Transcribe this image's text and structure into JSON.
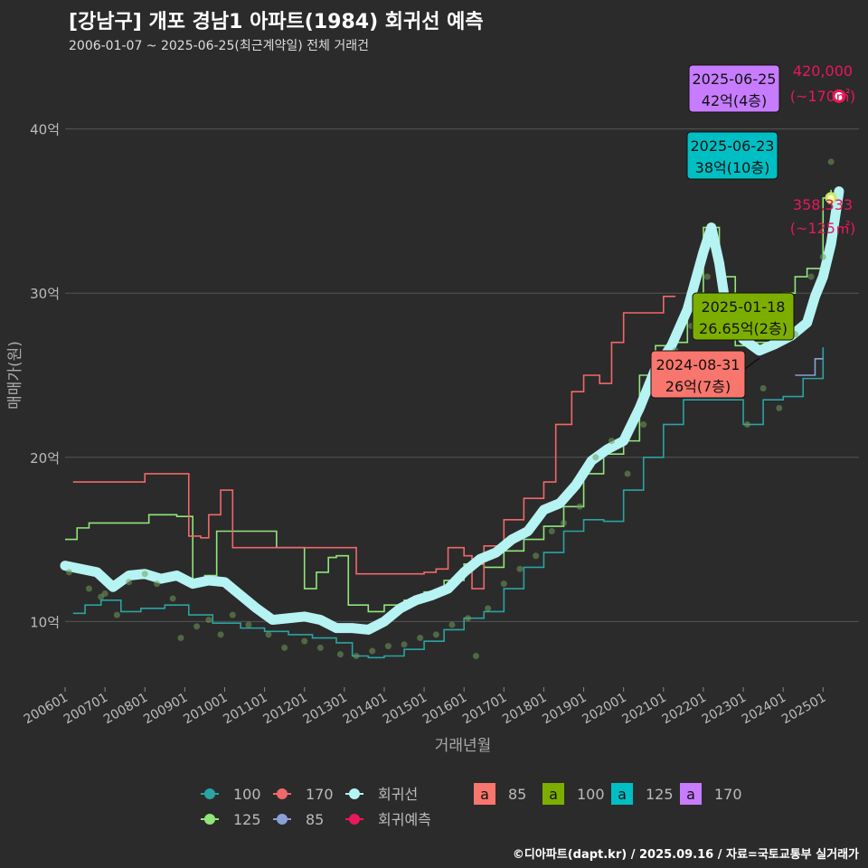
{
  "header": {
    "title": "[강남구] 개포 경남1 아파트(1984) 회귀선 예측",
    "subtitle": "2006-01-07 ~ 2025-06-25(최근계약일) 전체 거래건"
  },
  "footer": {
    "credit": "©디아파트(dapt.kr) / 2025.09.16 / 자료=국토교통부 실거래가"
  },
  "colors": {
    "background": "#2b2b2b",
    "grid": "#555555",
    "s100": "#2aa3a3",
    "s125": "#90e67a",
    "s170": "#f0686a",
    "s85": "#8aa0d8",
    "regression": "#b6f3f3",
    "prediction": "#e8185a",
    "box85": "#f8766d",
    "box100": "#7cae00",
    "box125": "#00bfc4",
    "box170": "#c77cff"
  },
  "chart_data": {
    "type": "line",
    "xlabel": "거래년월",
    "ylabel": "매매가(원)",
    "ylim": [
      6,
      44
    ],
    "yticks": [
      10,
      20,
      30,
      40
    ],
    "ytick_labels": [
      "10억",
      "20억",
      "30억",
      "40억"
    ],
    "xticks": [
      "200601",
      "200701",
      "200801",
      "200901",
      "201001",
      "201101",
      "201201",
      "201301",
      "201401",
      "201501",
      "201601",
      "201701",
      "201801",
      "201901",
      "202001",
      "202101",
      "202201",
      "202301",
      "202401",
      "202501"
    ],
    "xrange": [
      2006.0,
      2025.9
    ],
    "series": [
      {
        "name": "100",
        "x": [
          2006.2,
          2006.5,
          2006.9,
          2007.4,
          2007.9,
          2008.5,
          2009.1,
          2009.7,
          2010.4,
          2011.0,
          2011.6,
          2012.2,
          2012.8,
          2013.2,
          2013.6,
          2014.0,
          2014.5,
          2015.0,
          2015.5,
          2016.0,
          2016.5,
          2017.0,
          2017.5,
          2018.0,
          2018.5,
          2019.0,
          2019.5,
          2020.0,
          2020.5,
          2021.0,
          2021.5,
          2022.0,
          2023.0,
          2023.5,
          2024.0,
          2024.5,
          2025.0
        ],
        "values": [
          10.5,
          11.0,
          11.3,
          10.6,
          10.8,
          11.0,
          10.4,
          9.9,
          9.6,
          9.4,
          9.2,
          9.0,
          8.7,
          7.9,
          7.8,
          7.9,
          8.3,
          8.8,
          9.5,
          10.2,
          10.6,
          12.0,
          13.3,
          14.2,
          15.5,
          16.2,
          16.1,
          18.0,
          20.0,
          22.0,
          23.5,
          23.5,
          22.0,
          23.5,
          23.7,
          24.8,
          26.7
        ]
      },
      {
        "name": "125",
        "x": [
          2006.0,
          2006.3,
          2006.6,
          2008.1,
          2008.8,
          2009.2,
          2009.5,
          2009.8,
          2011.3,
          2011.7,
          2012.0,
          2012.3,
          2012.6,
          2012.8,
          2013.1,
          2013.6,
          2014.0,
          2014.5,
          2015.0,
          2015.5,
          2016.0,
          2016.5,
          2017.0,
          2017.5,
          2018.0,
          2018.5,
          2019.0,
          2019.5,
          2020.0,
          2020.4,
          2020.8,
          2021.2,
          2021.6,
          2022.0,
          2022.4,
          2022.8,
          2023.3,
          2023.7,
          2024.0,
          2024.3,
          2024.6,
          2025.0,
          2025.2
        ],
        "values": [
          15.0,
          15.7,
          16.0,
          16.5,
          16.4,
          12.2,
          12.8,
          15.5,
          14.5,
          14.5,
          12.0,
          13.0,
          13.9,
          14.0,
          11.0,
          10.6,
          11.0,
          11.3,
          11.8,
          12.5,
          13.5,
          13.3,
          14.3,
          15.0,
          15.8,
          17.0,
          19.0,
          20.2,
          21.0,
          25.0,
          26.8,
          27.0,
          30.0,
          34.0,
          31.0,
          26.8,
          27.0,
          28.5,
          30.0,
          31.0,
          31.5,
          35.8,
          36.3
        ]
      },
      {
        "name": "170",
        "x": [
          2006.2,
          2006.5,
          2008.0,
          2008.4,
          2009.1,
          2009.4,
          2009.6,
          2009.9,
          2010.2,
          2010.5,
          2010.8,
          2013.3,
          2013.7,
          2015.0,
          2015.3,
          2015.6,
          2016.0,
          2016.2,
          2016.5,
          2017.0,
          2017.5,
          2018.0,
          2018.3,
          2018.7,
          2019.0,
          2019.4,
          2019.7,
          2020.0,
          2020.3,
          2021.0,
          2021.3
        ],
        "values": [
          18.5,
          18.5,
          19.0,
          19.0,
          15.2,
          15.1,
          16.5,
          18.0,
          14.5,
          14.5,
          14.5,
          12.9,
          12.9,
          13.0,
          13.2,
          14.5,
          14.0,
          12.0,
          14.6,
          16.2,
          17.5,
          18.5,
          22.0,
          24.0,
          25.0,
          24.5,
          27.0,
          28.8,
          28.8,
          29.8,
          29.8
        ],
        "segments": true
      },
      {
        "name": "85",
        "x": [
          2024.3,
          2024.6,
          2024.8,
          2025.0
        ],
        "values": [
          25.0,
          25.0,
          26.0,
          26.0
        ]
      },
      {
        "name": "회귀선",
        "x": [
          2006.0,
          2006.4,
          2006.8,
          2007.2,
          2007.6,
          2008.0,
          2008.4,
          2008.8,
          2009.2,
          2009.6,
          2010.0,
          2010.4,
          2010.8,
          2011.2,
          2011.6,
          2012.0,
          2012.4,
          2012.8,
          2013.2,
          2013.6,
          2014.0,
          2014.4,
          2014.8,
          2015.2,
          2015.6,
          2016.0,
          2016.4,
          2016.8,
          2017.2,
          2017.6,
          2018.0,
          2018.4,
          2018.8,
          2019.2,
          2019.6,
          2020.0,
          2020.4,
          2020.8,
          2021.2,
          2021.6,
          2022.0,
          2022.2,
          2022.4,
          2022.6,
          2022.8,
          2023.0,
          2023.4,
          2023.8,
          2024.2,
          2024.6,
          2024.8,
          2025.0,
          2025.2,
          2025.4
        ],
        "values": [
          13.4,
          13.2,
          13.0,
          12.1,
          12.8,
          12.9,
          12.6,
          12.8,
          12.3,
          12.5,
          12.4,
          11.6,
          10.8,
          10.1,
          10.2,
          10.3,
          10.1,
          9.6,
          9.6,
          9.5,
          10.0,
          10.8,
          11.3,
          11.6,
          12.0,
          13.0,
          13.8,
          14.2,
          15.0,
          15.5,
          16.8,
          17.2,
          18.3,
          19.8,
          20.5,
          21.0,
          23.0,
          25.4,
          26.8,
          29.0,
          32.5,
          34.0,
          31.8,
          28.6,
          27.8,
          27.2,
          26.5,
          26.9,
          27.4,
          28.2,
          29.8,
          31.0,
          33.0,
          36.2
        ]
      },
      {
        "name": "회귀예측",
        "x": [
          2025.2,
          2025.4
        ],
        "values": [
          35.8,
          42.0
        ]
      }
    ],
    "scatter_points": [
      [
        2006.1,
        13.0
      ],
      [
        2006.6,
        12.0
      ],
      [
        2006.9,
        11.5
      ],
      [
        2007.0,
        11.7
      ],
      [
        2007.3,
        10.4
      ],
      [
        2007.6,
        12.4
      ],
      [
        2008.0,
        12.9
      ],
      [
        2008.3,
        12.3
      ],
      [
        2008.7,
        11.4
      ],
      [
        2008.9,
        9.0
      ],
      [
        2009.3,
        9.7
      ],
      [
        2009.6,
        10.1
      ],
      [
        2009.9,
        9.2
      ],
      [
        2010.2,
        10.4
      ],
      [
        2010.6,
        9.8
      ],
      [
        2011.1,
        9.2
      ],
      [
        2011.5,
        8.4
      ],
      [
        2012.0,
        8.8
      ],
      [
        2012.4,
        8.4
      ],
      [
        2012.9,
        8.0
      ],
      [
        2013.3,
        7.9
      ],
      [
        2013.7,
        8.2
      ],
      [
        2014.1,
        8.5
      ],
      [
        2014.5,
        8.6
      ],
      [
        2014.9,
        9.0
      ],
      [
        2015.3,
        9.2
      ],
      [
        2015.7,
        9.8
      ],
      [
        2016.1,
        10.2
      ],
      [
        2016.3,
        7.9
      ],
      [
        2016.6,
        10.8
      ],
      [
        2017.0,
        12.3
      ],
      [
        2017.4,
        13.2
      ],
      [
        2017.8,
        14.0
      ],
      [
        2018.2,
        15.5
      ],
      [
        2018.5,
        16.0
      ],
      [
        2018.9,
        17.0
      ],
      [
        2019.3,
        20.0
      ],
      [
        2019.7,
        21.0
      ],
      [
        2020.1,
        19.0
      ],
      [
        2020.5,
        22.0
      ],
      [
        2020.9,
        24.0
      ],
      [
        2021.3,
        26.5
      ],
      [
        2021.7,
        28.0
      ],
      [
        2022.1,
        31.0
      ],
      [
        2022.6,
        27.5
      ],
      [
        2023.1,
        22.0
      ],
      [
        2023.5,
        24.2
      ],
      [
        2023.9,
        23.0
      ],
      [
        2024.3,
        27.5
      ],
      [
        2024.7,
        31.0
      ],
      [
        2025.0,
        32.2
      ],
      [
        2025.2,
        38.0
      ]
    ],
    "annotations": [
      {
        "date": "2025-06-25",
        "text": "42억(4층)",
        "size": "170"
      },
      {
        "date": "2025-06-23",
        "text": "38억(10층)",
        "size": "125"
      },
      {
        "date": "2025-01-18",
        "text": "26.65억(2층)",
        "size": "100"
      },
      {
        "date": "2024-08-31",
        "text": "26억(7층)",
        "size": "85"
      }
    ],
    "predictions": [
      {
        "value": "420,000",
        "area": "(~170㎡)"
      },
      {
        "value": "358,333",
        "area": "(~125㎡)"
      }
    ],
    "legend": {
      "lines": [
        "100",
        "170",
        "회귀선",
        "125",
        "85",
        "회귀예측"
      ],
      "boxes": [
        "85",
        "100",
        "125",
        "170"
      ],
      "box_glyph": "a"
    }
  }
}
